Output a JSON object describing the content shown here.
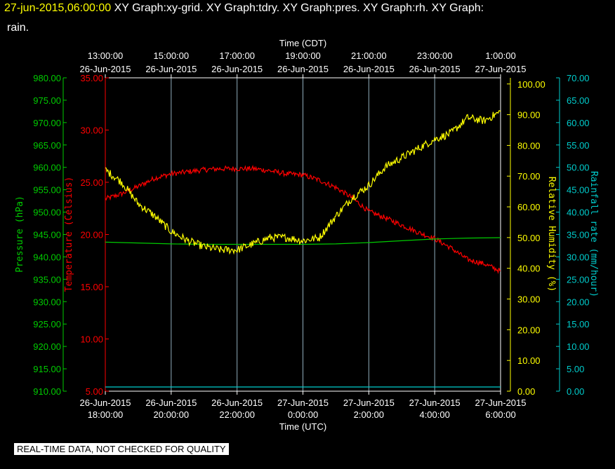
{
  "header": {
    "timestamp": "27-jun-2015,06:00:00",
    "graph_list": "XY Graph:xy-grid.  XY Graph:tdry.  XY Graph:pres.  XY Graph:rh.  XY Graph:",
    "graph_list_cont": "rain."
  },
  "footer": {
    "quality_note": "REAL-TIME DATA, NOT CHECKED FOR QUALITY"
  },
  "colors": {
    "background": "#000000",
    "temperature": "#ff0000",
    "pressure": "#00cc00",
    "humidity": "#ffff00",
    "rain": "#00cccc",
    "axis_time": "#ffffff",
    "grid": "#aaccdd"
  },
  "chart_data": {
    "type": "line",
    "x_top": {
      "label": "Time (CDT)",
      "ticks": [
        [
          "13:00:00",
          "26-Jun-2015"
        ],
        [
          "15:00:00",
          "26-Jun-2015"
        ],
        [
          "17:00:00",
          "26-Jun-2015"
        ],
        [
          "19:00:00",
          "26-Jun-2015"
        ],
        [
          "21:00:00",
          "26-Jun-2015"
        ],
        [
          "23:00:00",
          "26-Jun-2015"
        ],
        [
          "1:00:00",
          "27-Jun-2015"
        ]
      ]
    },
    "x_bottom": {
      "label": "Time (UTC)",
      "ticks": [
        [
          "26-Jun-2015",
          "18:00:00"
        ],
        [
          "26-Jun-2015",
          "20:00:00"
        ],
        [
          "26-Jun-2015",
          "22:00:00"
        ],
        [
          "27-Jun-2015",
          "0:00:00"
        ],
        [
          "27-Jun-2015",
          "2:00:00"
        ],
        [
          "27-Jun-2015",
          "4:00:00"
        ],
        [
          "27-Jun-2015",
          "6:00:00"
        ]
      ]
    },
    "grid": true,
    "axes": {
      "pressure": {
        "label": "Pressure (hPa)",
        "range": [
          910,
          980
        ],
        "ticks": [
          "910.00",
          "915.00",
          "920.00",
          "925.00",
          "930.00",
          "935.00",
          "940.00",
          "945.00",
          "950.00",
          "955.00",
          "960.00",
          "965.00",
          "970.00",
          "975.00",
          "980.00"
        ]
      },
      "temperature": {
        "label": "Temperature (Celsius)",
        "range": [
          5,
          35
        ],
        "ticks": [
          "5.00",
          "10.00",
          "15.00",
          "20.00",
          "25.00",
          "30.00",
          "35.00"
        ]
      },
      "humidity": {
        "label": "Relative Humidity (%)",
        "range": [
          0,
          102
        ],
        "ticks": [
          "0.00",
          "10.00",
          "20.00",
          "30.00",
          "40.00",
          "50.00",
          "60.00",
          "70.00",
          "80.00",
          "90.00",
          "100.00"
        ]
      },
      "rain": {
        "label": "Rainfall rate (mm/hour)",
        "range": [
          0,
          70
        ],
        "ticks": [
          "0.00",
          "5.00",
          "10.00",
          "15.00",
          "20.00",
          "25.00",
          "30.00",
          "35.00",
          "40.00",
          "45.00",
          "50.00",
          "55.00",
          "60.00",
          "65.00",
          "70.00"
        ]
      }
    },
    "x_units": "hours UTC, 18:00 26-Jun-2015 to 06:00 27-Jun-2015",
    "series": [
      {
        "name": "Temperature (Celsius)",
        "axis": "temperature",
        "color": "#ff0000",
        "noise": 0.25,
        "x": [
          "18:00",
          "18:30",
          "19:00",
          "19:30",
          "20:00",
          "20:30",
          "21:00",
          "21:30",
          "22:00",
          "22:30",
          "23:00",
          "23:30",
          "00:00",
          "00:30",
          "01:00",
          "01:30",
          "02:00",
          "02:30",
          "03:00",
          "03:30",
          "04:00",
          "04:30",
          "05:00",
          "05:30",
          "06:00"
        ],
        "y": [
          23.4,
          23.9,
          24.6,
          25.4,
          25.8,
          26.0,
          26.2,
          26.3,
          26.3,
          26.3,
          26.1,
          25.8,
          25.7,
          25.2,
          24.5,
          23.5,
          22.2,
          21.6,
          20.9,
          20.2,
          19.6,
          18.7,
          17.6,
          17.2,
          16.5
        ]
      },
      {
        "name": "Pressure (hPa)",
        "axis": "pressure",
        "color": "#00cc00",
        "noise": 0,
        "x": [
          "18:00",
          "19:00",
          "20:00",
          "21:00",
          "22:00",
          "23:00",
          "00:00",
          "01:00",
          "02:00",
          "03:00",
          "04:00",
          "05:00",
          "06:00"
        ],
        "y": [
          943.3,
          943.1,
          942.9,
          942.8,
          942.8,
          942.8,
          942.8,
          942.9,
          943.2,
          943.6,
          944.0,
          944.2,
          944.3
        ]
      },
      {
        "name": "Relative Humidity (%)",
        "axis": "humidity",
        "color": "#ffff00",
        "noise": 1.3,
        "x": [
          "18:00",
          "18:30",
          "19:00",
          "19:30",
          "20:00",
          "20:30",
          "21:00",
          "21:30",
          "22:00",
          "22:30",
          "23:00",
          "23:30",
          "00:00",
          "00:30",
          "01:00",
          "01:30",
          "02:00",
          "02:30",
          "03:00",
          "03:30",
          "04:00",
          "04:30",
          "05:00",
          "05:30",
          "06:00"
        ],
        "y": [
          72,
          68,
          61,
          57,
          52,
          49,
          47,
          46,
          46,
          48,
          50,
          50,
          49,
          50,
          57,
          63,
          67,
          73,
          76,
          79,
          82,
          84,
          89,
          88,
          91
        ]
      },
      {
        "name": "Rainfall rate (mm/hour)",
        "axis": "rain",
        "color": "#00cccc",
        "noise": 0,
        "x": [
          "18:00",
          "06:00"
        ],
        "y": [
          0,
          0
        ]
      }
    ]
  }
}
